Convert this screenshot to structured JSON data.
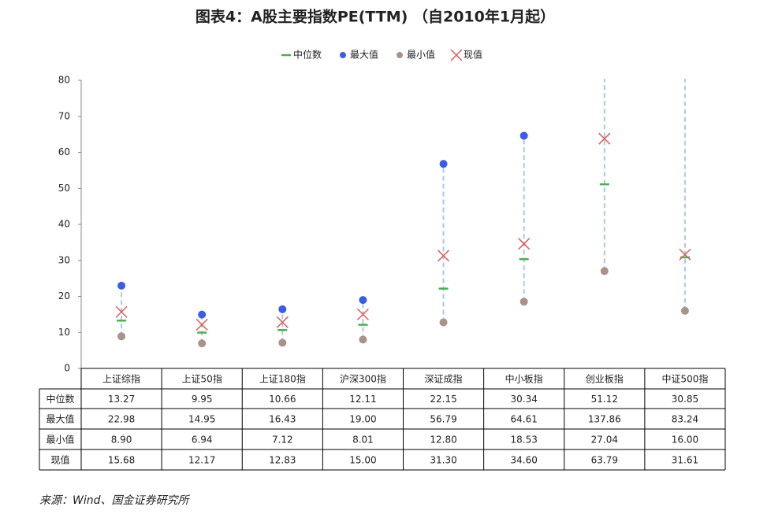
{
  "chart_data": {
    "type": "range-dot",
    "title": "图表4：A股主要指数PE(TTM) （自2010年1月起）",
    "categories": [
      "上证综指",
      "上证50指",
      "上证180指",
      "沪深300指",
      "深证成指",
      "中小板指",
      "创业板指",
      "中证500指"
    ],
    "series": [
      {
        "name": "中位数",
        "color": "#4caf50",
        "values": [
          13.27,
          9.95,
          10.66,
          12.11,
          22.15,
          30.34,
          51.12,
          30.85
        ],
        "value_labels": [
          "13.27",
          "9.95",
          "10.66",
          "12.11",
          "22.15",
          "30.34",
          "51.12",
          "30.85"
        ]
      },
      {
        "name": "最大值",
        "color": "#3b5ce6",
        "values": [
          22.98,
          14.95,
          16.43,
          19,
          56.79,
          64.61,
          137.86,
          83.24
        ],
        "value_labels": [
          "22.98",
          "14.95",
          "16.43",
          "19.00",
          "56.79",
          "64.61",
          "137.86",
          "83.24"
        ]
      },
      {
        "name": "最小值",
        "color": "#a89289",
        "values": [
          8.9,
          6.94,
          7.12,
          8.01,
          12.8,
          18.53,
          27.04,
          16
        ],
        "value_labels": [
          "8.90",
          "6.94",
          "7.12",
          "8.01",
          "12.80",
          "18.53",
          "27.04",
          "16.00"
        ]
      },
      {
        "name": "现值",
        "color": "#e05a5a",
        "values": [
          15.68,
          12.17,
          12.83,
          15,
          31.3,
          34.6,
          63.79,
          31.61
        ],
        "value_labels": [
          "15.68",
          "12.17",
          "12.83",
          "15.00",
          "31.30",
          "34.60",
          "63.79",
          "31.61"
        ]
      }
    ],
    "range_color": "#a9c8ec",
    "ylim": [
      0,
      80
    ],
    "yticks": [
      0,
      10,
      20,
      30,
      40,
      50,
      60,
      70,
      80
    ],
    "source": "来源：Wind、国金证券研究所"
  }
}
